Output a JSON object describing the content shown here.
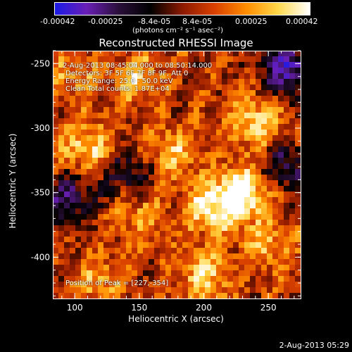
{
  "colorbar": {
    "ticks": [
      "-0.00042",
      "-0.00025",
      "-8.4e-05",
      "8.4e-05",
      "0.00025",
      "0.00042"
    ],
    "units": "(photons cm⁻² s⁻¹ asec⁻²)",
    "colors": [
      "#1a1ae6",
      "#6a1fb5",
      "#2a0f3a",
      "#000000",
      "#8c1a00",
      "#d94000",
      "#ff8c00",
      "#ffd84a",
      "#ffffff"
    ]
  },
  "annotations": {
    "time_range": "2-Aug-2013 08:45:04.000 to 08:50:14.000",
    "detectors": "Detectors: 3F 5F 6F 7F 8F 9F, Att 0",
    "energy": "Energy Range: 25.0 - 50.0 keV",
    "clean": "Clean    Total counts: 1.87E+04",
    "peak": "Position of Peak = [227,-354]"
  },
  "footer": {
    "date": "2-Aug-2013 05:29"
  },
  "chart_data": {
    "type": "heatmap",
    "title": "Reconstructed RHESSI Image",
    "xlabel": "Heliocentric X (arcsec)",
    "ylabel": "Heliocentric Y (arcsec)",
    "xlim": [
      83,
      275
    ],
    "ylim": [
      -432,
      -240
    ],
    "xticks": [
      "100",
      "150",
      "200",
      "250"
    ],
    "xtick_values": [
      100,
      150,
      200,
      250
    ],
    "yticks": [
      "-250",
      "-300",
      "-350",
      "-400"
    ],
    "ytick_values": [
      -250,
      -300,
      -350,
      -400
    ],
    "zlim": [
      -0.00042,
      0.00042
    ],
    "peak": [
      227,
      -354
    ],
    "sources": [
      {
        "x": 230,
        "y": -350,
        "intensity": 0.00042
      },
      {
        "x": 205,
        "y": -362,
        "intensity": 0.00032
      },
      {
        "x": 175,
        "y": -318,
        "intensity": 0.00022
      },
      {
        "x": 110,
        "y": -315,
        "intensity": 0.00028
      },
      {
        "x": 240,
        "y": -295,
        "intensity": 0.0003
      },
      {
        "x": 150,
        "y": -262,
        "intensity": 0.00024
      },
      {
        "x": 100,
        "y": -260,
        "intensity": 0.00018
      },
      {
        "x": 120,
        "y": -420,
        "intensity": 0.0002
      },
      {
        "x": 200,
        "y": -415,
        "intensity": 0.00026
      },
      {
        "x": 150,
        "y": -370,
        "intensity": 0.00018
      },
      {
        "x": 250,
        "y": -390,
        "intensity": 0.00022
      },
      {
        "x": 265,
        "y": -255,
        "intensity": -0.0004
      },
      {
        "x": 95,
        "y": -355,
        "intensity": -0.00028
      },
      {
        "x": 140,
        "y": -335,
        "intensity": -0.00022
      },
      {
        "x": 265,
        "y": -330,
        "intensity": -0.00026
      }
    ]
  }
}
